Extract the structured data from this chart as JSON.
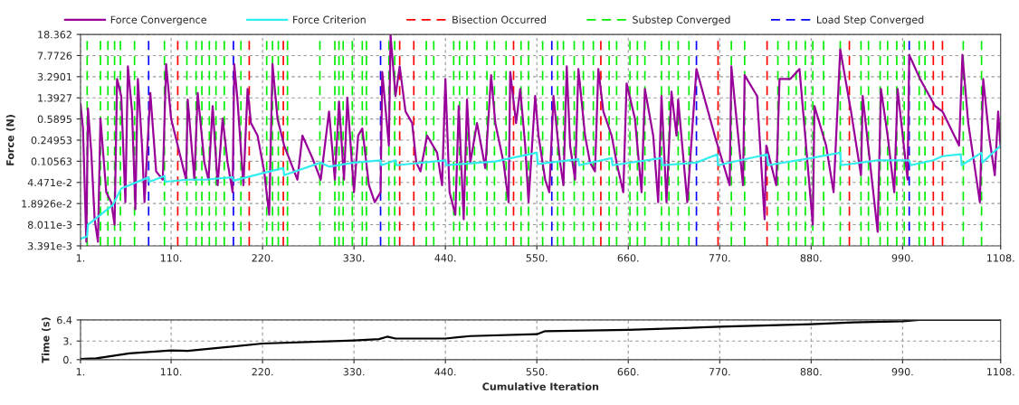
{
  "chart_data": [
    {
      "type": "line",
      "ylabel": "Force (N)",
      "log": "y",
      "grid": true,
      "legend": "top",
      "line_style": "solid",
      "xlim": [
        1,
        1108
      ],
      "xticks": [
        {
          "value": 1,
          "label": "1."
        },
        {
          "value": 110,
          "label": "110."
        },
        {
          "value": 220,
          "label": "220."
        },
        {
          "value": 330,
          "label": "330."
        },
        {
          "value": 440,
          "label": "440."
        },
        {
          "value": 550,
          "label": "550."
        },
        {
          "value": 660,
          "label": "660."
        },
        {
          "value": 770,
          "label": "770."
        },
        {
          "value": 880,
          "label": "880."
        },
        {
          "value": 990,
          "label": "990."
        },
        {
          "value": 1108,
          "label": "1108."
        }
      ],
      "ylim": [
        0.003391,
        18.362
      ],
      "yticks": [
        {
          "value": 0.003391,
          "label": "3.391e-3"
        },
        {
          "value": 0.008011,
          "label": "8.011e-3"
        },
        {
          "value": 0.018926,
          "label": "1.8926e-2"
        },
        {
          "value": 0.04471,
          "label": "4.471e-2"
        },
        0.10563,
        0.24953,
        0.5895,
        1.3927,
        3.2901,
        7.7726,
        18.362
      ],
      "series": [
        {
          "name": "Force Convergence",
          "color": "#990099",
          "x": [
            1,
            4,
            8,
            10,
            14,
            18,
            22,
            25,
            32,
            38,
            42,
            45,
            50,
            55,
            58,
            63,
            67,
            70,
            75,
            78,
            85,
            92,
            100,
            104,
            110,
            118,
            128,
            130,
            138,
            142,
            150,
            155,
            160,
            166,
            172,
            178,
            184,
            186,
            190,
            197,
            202,
            206,
            214,
            222,
            228,
            232,
            238,
            246,
            254,
            262,
            268,
            280,
            290,
            300,
            307,
            312,
            318,
            322,
            330,
            335,
            340,
            348,
            355,
            362,
            364,
            372,
            374,
            380,
            385,
            392,
            400,
            405,
            410,
            418,
            430,
            436,
            440,
            445,
            452,
            456,
            462,
            466,
            470,
            478,
            483,
            488,
            495,
            500,
            510,
            516,
            518,
            525,
            530,
            536,
            540,
            548,
            552,
            560,
            565,
            570,
            578,
            582,
            586,
            590,
            596,
            600,
            608,
            614,
            620,
            624,
            630,
            640,
            646,
            654,
            658,
            668,
            676,
            680,
            690,
            696,
            700,
            706,
            712,
            718,
            720,
            731,
            742,
            764,
            782,
            784,
            798,
            800,
            815,
            824,
            826,
            838,
            842,
            855,
            866,
            882,
            884,
            898,
            907,
            915,
            928,
            940,
            942,
            960,
            964,
            972,
            980,
            984,
            996,
            998,
            1011,
            1029,
            1038,
            1058,
            1062,
            1069,
            1083,
            1087,
            1094,
            1101,
            1105,
            1108
          ],
          "values": [
            1.1,
            0.4,
            0.004,
            0.9,
            0.15,
            0.01,
            0.004,
            0.6,
            0.03,
            0.02,
            0.008,
            3,
            1.5,
            0.02,
            5,
            0.8,
            0.015,
            3,
            0.2,
            0.02,
            1.7,
            0.07,
            0.05,
            5.5,
            0.6,
            0.2,
            0.05,
            1.3,
            0.05,
            1.7,
            0.1,
            0.05,
            1.0,
            0.04,
            0.6,
            0.1,
            0.03,
            5.5,
            1.2,
            0.04,
            2,
            0.5,
            0.3,
            0.07,
            0.012,
            5.5,
            0.6,
            0.2,
            0.1,
            0.05,
            0.3,
            0.12,
            0.05,
            0.8,
            0.05,
            1.2,
            0.05,
            1.4,
            0.03,
            0.3,
            0.4,
            0.04,
            0.02,
            0.03,
            4,
            0.2,
            18,
            1.5,
            5,
            0.8,
            0.5,
            0.1,
            0.07,
            0.3,
            0.15,
            0.04,
            3,
            0.03,
            0.012,
            1,
            0.01,
            1.3,
            0.1,
            0.5,
            0.2,
            0.08,
            3.5,
            0.5,
            0.1,
            0.02,
            4,
            0.5,
            2,
            0.2,
            0.02,
            1.5,
            0.3,
            0.05,
            0.03,
            1.5,
            0.1,
            0.04,
            5,
            0.2,
            0.05,
            4.5,
            0.3,
            0.1,
            0.07,
            4.5,
            0.8,
            0.3,
            0.1,
            0.03,
            2.5,
            0.6,
            0.03,
            2,
            0.3,
            0.02,
            1.5,
            0.02,
            1.8,
            0.3,
            1.3,
            0.02,
            4.5,
            0.3,
            0.04,
            5,
            0.04,
            3.5,
            1.5,
            0.01,
            0.2,
            0.04,
            3,
            3,
            4.5,
            0.008,
            1,
            0.2,
            0.03,
            10,
            0.8,
            0.06,
            1.5,
            0.006,
            2,
            0.3,
            0.03,
            2,
            0.05,
            8,
            3,
            1,
            0.8,
            0.2,
            8,
            0.5,
            0.02,
            3,
            0.3,
            0.06,
            0.8,
            0.18
          ]
        },
        {
          "name": "Force Criterion",
          "color": "#33eeee",
          "x": [
            1,
            9,
            10,
            40,
            50,
            83,
            84,
            102,
            103,
            130,
            150,
            184,
            185,
            220,
            245,
            246,
            290,
            300,
            330,
            362,
            363,
            380,
            381,
            440,
            441,
            500,
            550,
            551,
            600,
            601,
            640,
            641,
            700,
            701,
            742,
            767,
            768,
            827,
            828,
            880,
            915,
            916,
            960,
            998,
            1000,
            1027,
            1038,
            1060,
            1061,
            1085,
            1086,
            1108
          ],
          "values": [
            0.0045,
            0.005,
            0.008,
            0.018,
            0.035,
            0.055,
            0.046,
            0.058,
            0.046,
            0.05,
            0.05,
            0.055,
            0.048,
            0.065,
            0.08,
            0.06,
            0.1,
            0.085,
            0.1,
            0.11,
            0.09,
            0.11,
            0.09,
            0.11,
            0.09,
            0.105,
            0.15,
            0.095,
            0.115,
            0.09,
            0.12,
            0.09,
            0.12,
            0.09,
            0.1,
            0.14,
            0.09,
            0.14,
            0.09,
            0.12,
            0.15,
            0.09,
            0.11,
            0.11,
            0.09,
            0.11,
            0.13,
            0.14,
            0.09,
            0.15,
            0.1,
            0.2
          ]
        }
      ],
      "ref_lines": [
        {
          "axis": "x",
          "value": 118,
          "label": "Bisection Occurred",
          "color": "#ff0000",
          "line_style": "dashed"
        },
        {
          "axis": "x",
          "value": 9,
          "label": "Substep Converged",
          "color": "#00ee00",
          "line_style": "dashed"
        },
        {
          "axis": "x",
          "value": 83,
          "label": "Load Step Converged",
          "color": "#0000ff",
          "line_style": "dashed"
        },
        {
          "axis": "x",
          "value": 204,
          "color": "#ff0000",
          "line_style": "dashed"
        },
        {
          "axis": "x",
          "value": 245,
          "color": "#ff0000",
          "line_style": "dashed"
        },
        {
          "axis": "x",
          "value": 385,
          "color": "#ff0000",
          "line_style": "dashed"
        },
        {
          "axis": "x",
          "value": 402,
          "color": "#ff0000",
          "line_style": "dashed"
        },
        {
          "axis": "x",
          "value": 522,
          "color": "#ff0000",
          "line_style": "dashed"
        },
        {
          "axis": "x",
          "value": 627,
          "color": "#ff0000",
          "line_style": "dashed"
        },
        {
          "axis": "x",
          "value": 768,
          "color": "#ff0000",
          "line_style": "dashed"
        },
        {
          "axis": "x",
          "value": 827,
          "color": "#ff0000",
          "line_style": "dashed"
        },
        {
          "axis": "x",
          "value": 926,
          "color": "#ff0000",
          "line_style": "dashed"
        },
        {
          "axis": "x",
          "value": 1027,
          "color": "#ff0000",
          "line_style": "dashed"
        },
        {
          "axis": "x",
          "value": 1038,
          "color": "#ff0000",
          "line_style": "dashed"
        },
        {
          "axis": "x",
          "value": 185,
          "color": "#0000ff",
          "line_style": "dashed"
        },
        {
          "axis": "x",
          "value": 362,
          "color": "#0000ff",
          "line_style": "dashed"
        },
        {
          "axis": "x",
          "value": 568,
          "color": "#0000ff",
          "line_style": "dashed"
        },
        {
          "axis": "x",
          "value": 742,
          "color": "#0000ff",
          "line_style": "dashed"
        },
        {
          "axis": "x",
          "value": 998,
          "color": "#0000ff",
          "line_style": "dashed"
        },
        {
          "axis": "x",
          "value": 25,
          "color": "#00ee00",
          "line_style": "dashed"
        },
        {
          "axis": "x",
          "value": 34,
          "color": "#00ee00",
          "line_style": "dashed"
        },
        {
          "axis": "x",
          "value": 42,
          "color": "#00ee00",
          "line_style": "dashed"
        },
        {
          "axis": "x",
          "value": 49,
          "color": "#00ee00",
          "line_style": "dashed"
        },
        {
          "axis": "x",
          "value": 66,
          "color": "#00ee00",
          "line_style": "dashed"
        },
        {
          "axis": "x",
          "value": 102,
          "color": "#00ee00",
          "line_style": "dashed"
        },
        {
          "axis": "x",
          "value": 129,
          "color": "#00ee00",
          "line_style": "dashed"
        },
        {
          "axis": "x",
          "value": 140,
          "color": "#00ee00",
          "line_style": "dashed"
        },
        {
          "axis": "x",
          "value": 147,
          "color": "#00ee00",
          "line_style": "dashed"
        },
        {
          "axis": "x",
          "value": 156,
          "color": "#00ee00",
          "line_style": "dashed"
        },
        {
          "axis": "x",
          "value": 164,
          "color": "#00ee00",
          "line_style": "dashed"
        },
        {
          "axis": "x",
          "value": 174,
          "color": "#00ee00",
          "line_style": "dashed"
        },
        {
          "axis": "x",
          "value": 194,
          "color": "#00ee00",
          "line_style": "dashed"
        },
        {
          "axis": "x",
          "value": 225,
          "color": "#00ee00",
          "line_style": "dashed"
        },
        {
          "axis": "x",
          "value": 232,
          "color": "#00ee00",
          "line_style": "dashed"
        },
        {
          "axis": "x",
          "value": 239,
          "color": "#00ee00",
          "line_style": "dashed"
        },
        {
          "axis": "x",
          "value": 250,
          "color": "#00ee00",
          "line_style": "dashed"
        },
        {
          "axis": "x",
          "value": 289,
          "color": "#00ee00",
          "line_style": "dashed"
        },
        {
          "axis": "x",
          "value": 307,
          "color": "#00ee00",
          "line_style": "dashed"
        },
        {
          "axis": "x",
          "value": 312,
          "color": "#00ee00",
          "line_style": "dashed"
        },
        {
          "axis": "x",
          "value": 317,
          "color": "#00ee00",
          "line_style": "dashed"
        },
        {
          "axis": "x",
          "value": 328,
          "color": "#00ee00",
          "line_style": "dashed"
        },
        {
          "axis": "x",
          "value": 340,
          "color": "#00ee00",
          "line_style": "dashed"
        },
        {
          "axis": "x",
          "value": 345,
          "color": "#00ee00",
          "line_style": "dashed"
        },
        {
          "axis": "x",
          "value": 372,
          "color": "#00ee00",
          "line_style": "dashed"
        },
        {
          "axis": "x",
          "value": 379,
          "color": "#00ee00",
          "line_style": "dashed"
        },
        {
          "axis": "x",
          "value": 417,
          "color": "#00ee00",
          "line_style": "dashed"
        },
        {
          "axis": "x",
          "value": 426,
          "color": "#00ee00",
          "line_style": "dashed"
        },
        {
          "axis": "x",
          "value": 450,
          "color": "#00ee00",
          "line_style": "dashed"
        },
        {
          "axis": "x",
          "value": 457,
          "color": "#00ee00",
          "line_style": "dashed"
        },
        {
          "axis": "x",
          "value": 466,
          "color": "#00ee00",
          "line_style": "dashed"
        },
        {
          "axis": "x",
          "value": 475,
          "color": "#00ee00",
          "line_style": "dashed"
        },
        {
          "axis": "x",
          "value": 490,
          "color": "#00ee00",
          "line_style": "dashed"
        },
        {
          "axis": "x",
          "value": 499,
          "color": "#00ee00",
          "line_style": "dashed"
        },
        {
          "axis": "x",
          "value": 513,
          "color": "#00ee00",
          "line_style": "dashed"
        },
        {
          "axis": "x",
          "value": 531,
          "color": "#00ee00",
          "line_style": "dashed"
        },
        {
          "axis": "x",
          "value": 540,
          "color": "#00ee00",
          "line_style": "dashed"
        },
        {
          "axis": "x",
          "value": 557,
          "color": "#00ee00",
          "line_style": "dashed"
        },
        {
          "axis": "x",
          "value": 575,
          "color": "#00ee00",
          "line_style": "dashed"
        },
        {
          "axis": "x",
          "value": 582,
          "color": "#00ee00",
          "line_style": "dashed"
        },
        {
          "axis": "x",
          "value": 595,
          "color": "#00ee00",
          "line_style": "dashed"
        },
        {
          "axis": "x",
          "value": 606,
          "color": "#00ee00",
          "line_style": "dashed"
        },
        {
          "axis": "x",
          "value": 618,
          "color": "#00ee00",
          "line_style": "dashed"
        },
        {
          "axis": "x",
          "value": 637,
          "color": "#00ee00",
          "line_style": "dashed"
        },
        {
          "axis": "x",
          "value": 646,
          "color": "#00ee00",
          "line_style": "dashed"
        },
        {
          "axis": "x",
          "value": 662,
          "color": "#00ee00",
          "line_style": "dashed"
        },
        {
          "axis": "x",
          "value": 671,
          "color": "#00ee00",
          "line_style": "dashed"
        },
        {
          "axis": "x",
          "value": 680,
          "color": "#00ee00",
          "line_style": "dashed"
        },
        {
          "axis": "x",
          "value": 700,
          "color": "#00ee00",
          "line_style": "dashed"
        },
        {
          "axis": "x",
          "value": 709,
          "color": "#00ee00",
          "line_style": "dashed"
        },
        {
          "axis": "x",
          "value": 720,
          "color": "#00ee00",
          "line_style": "dashed"
        },
        {
          "axis": "x",
          "value": 733,
          "color": "#00ee00",
          "line_style": "dashed"
        },
        {
          "axis": "x",
          "value": 784,
          "color": "#00ee00",
          "line_style": "dashed"
        },
        {
          "axis": "x",
          "value": 800,
          "color": "#00ee00",
          "line_style": "dashed"
        },
        {
          "axis": "x",
          "value": 840,
          "color": "#00ee00",
          "line_style": "dashed"
        },
        {
          "axis": "x",
          "value": 853,
          "color": "#00ee00",
          "line_style": "dashed"
        },
        {
          "axis": "x",
          "value": 862,
          "color": "#00ee00",
          "line_style": "dashed"
        },
        {
          "axis": "x",
          "value": 873,
          "color": "#00ee00",
          "line_style": "dashed"
        },
        {
          "axis": "x",
          "value": 882,
          "color": "#00ee00",
          "line_style": "dashed"
        },
        {
          "axis": "x",
          "value": 895,
          "color": "#00ee00",
          "line_style": "dashed"
        },
        {
          "axis": "x",
          "value": 915,
          "color": "#00ee00",
          "line_style": "dashed"
        },
        {
          "axis": "x",
          "value": 940,
          "color": "#00ee00",
          "line_style": "dashed"
        },
        {
          "axis": "x",
          "value": 949,
          "color": "#00ee00",
          "line_style": "dashed"
        },
        {
          "axis": "x",
          "value": 963,
          "color": "#00ee00",
          "line_style": "dashed"
        },
        {
          "axis": "x",
          "value": 972,
          "color": "#00ee00",
          "line_style": "dashed"
        },
        {
          "axis": "x",
          "value": 983,
          "color": "#00ee00",
          "line_style": "dashed"
        },
        {
          "axis": "x",
          "value": 992,
          "color": "#00ee00",
          "line_style": "dashed"
        },
        {
          "axis": "x",
          "value": 1010,
          "color": "#00ee00",
          "line_style": "dashed"
        },
        {
          "axis": "x",
          "value": 1017,
          "color": "#00ee00",
          "line_style": "dashed"
        },
        {
          "axis": "x",
          "value": 1063,
          "color": "#00ee00",
          "line_style": "dashed"
        },
        {
          "axis": "x",
          "value": 1085,
          "color": "#00ee00",
          "line_style": "dashed"
        }
      ]
    },
    {
      "type": "line",
      "xlabel": "Cumulative Iteration",
      "ylabel": "Time (s)",
      "grid": true,
      "line_style": "solid",
      "xlim": [
        1,
        1108
      ],
      "xticks": [
        {
          "value": 1,
          "label": "1."
        },
        {
          "value": 110,
          "label": "110."
        },
        {
          "value": 220,
          "label": "220."
        },
        {
          "value": 330,
          "label": "330."
        },
        {
          "value": 440,
          "label": "440."
        },
        {
          "value": 550,
          "label": "550."
        },
        {
          "value": 660,
          "label": "660."
        },
        {
          "value": 770,
          "label": "770."
        },
        {
          "value": 880,
          "label": "880."
        },
        {
          "value": 990,
          "label": "990."
        },
        {
          "value": 1108,
          "label": "1108."
        }
      ],
      "ylim": [
        0,
        6.4
      ],
      "yticks": [
        {
          "value": 0,
          "label": "0."
        },
        {
          "value": 3,
          "label": "3."
        },
        6.4
      ],
      "series": [
        {
          "color": "#000000",
          "x": [
            1,
            20,
            60,
            110,
            130,
            220,
            330,
            360,
            370,
            380,
            440,
            470,
            550,
            560,
            660,
            770,
            880,
            930,
            990,
            1010,
            1108
          ],
          "values": [
            0.1,
            0.2,
            1,
            1.5,
            1.4,
            2.6,
            3.1,
            3.3,
            3.7,
            3.4,
            3.4,
            3.8,
            4.1,
            4.6,
            4.8,
            5.3,
            5.7,
            6.0,
            6.2,
            6.4,
            6.4
          ]
        }
      ]
    }
  ]
}
